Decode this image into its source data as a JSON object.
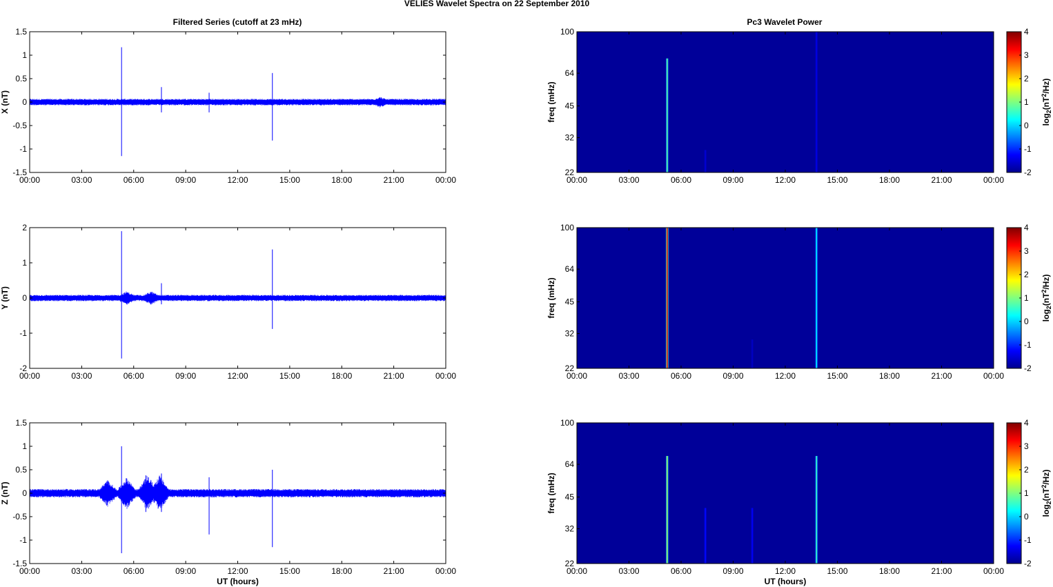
{
  "figure": {
    "title": "VELIES Wavelet Spectra on 22 September 2010",
    "left_title": "Filtered Series (cutoff at 23 mHz)",
    "right_title": "Pc3 Wavelet Power",
    "time_xlabel": "UT (hours)",
    "freq_ylabel": "freq (mHz)",
    "colorbar_label": "log2(nT2/Hz)",
    "colorbar_label_parts": {
      "base": "log",
      "sub": "2",
      "open": "(nT",
      "sup": "2",
      "close": "/Hz)"
    }
  },
  "chart_data": [
    {
      "type": "line",
      "name": "X",
      "ylabel": "X (nT)",
      "xlabel": "",
      "x_ticks": [
        "00:00",
        "03:00",
        "06:00",
        "09:00",
        "12:00",
        "15:00",
        "18:00",
        "21:00",
        "00:00"
      ],
      "xlim_hours": [
        0,
        24
      ],
      "ylim": [
        -1.5,
        1.5
      ],
      "y_ticks": [
        -1.5,
        -1,
        -0.5,
        0,
        0.5,
        1,
        1.5
      ],
      "color": "#0000ff",
      "noise_amplitude": 0.07,
      "bursts": [
        [
          20.2,
          0.08
        ]
      ],
      "spikes": [
        {
          "t": 5.3,
          "min": -1.15,
          "max": 1.17
        },
        {
          "t": 7.6,
          "min": -0.22,
          "max": 0.32
        },
        {
          "t": 10.35,
          "min": -0.22,
          "max": 0.2
        },
        {
          "t": 14.0,
          "min": -0.82,
          "max": 0.62
        }
      ]
    },
    {
      "type": "line",
      "name": "Y",
      "ylabel": "Y (nT)",
      "xlabel": "",
      "x_ticks": [
        "00:00",
        "03:00",
        "06:00",
        "09:00",
        "12:00",
        "15:00",
        "18:00",
        "21:00",
        "00:00"
      ],
      "xlim_hours": [
        0,
        24
      ],
      "ylim": [
        -2,
        2
      ],
      "y_ticks": [
        -2,
        -1,
        0,
        1,
        2
      ],
      "color": "#0000ff",
      "noise_amplitude": 0.09,
      "bursts": [
        [
          5.6,
          0.15
        ],
        [
          7.0,
          0.15
        ]
      ],
      "spikes": [
        {
          "t": 5.3,
          "min": -1.72,
          "max": 1.9
        },
        {
          "t": 7.6,
          "min": -0.18,
          "max": 0.42
        },
        {
          "t": 14.0,
          "min": -0.88,
          "max": 1.38
        }
      ]
    },
    {
      "type": "line",
      "name": "Z",
      "ylabel": "Z (nT)",
      "xlabel": "UT (hours)",
      "x_ticks": [
        "00:00",
        "03:00",
        "06:00",
        "09:00",
        "12:00",
        "15:00",
        "18:00",
        "21:00",
        "00:00"
      ],
      "xlim_hours": [
        0,
        24
      ],
      "ylim": [
        -1.5,
        1.5
      ],
      "y_ticks": [
        -1.5,
        -1,
        -0.5,
        0,
        0.5,
        1,
        1.5
      ],
      "color": "#0000ff",
      "noise_amplitude": 0.09,
      "bursts": [
        [
          4.5,
          0.25
        ],
        [
          5.6,
          0.3
        ],
        [
          6.8,
          0.35
        ],
        [
          7.5,
          0.35
        ]
      ],
      "spikes": [
        {
          "t": 5.3,
          "min": -1.28,
          "max": 1.0
        },
        {
          "t": 6.7,
          "min": -0.4,
          "max": 0.38
        },
        {
          "t": 7.6,
          "min": -0.4,
          "max": 0.42
        },
        {
          "t": 10.35,
          "min": -0.88,
          "max": 0.34
        },
        {
          "t": 14.0,
          "min": -1.15,
          "max": 0.5
        }
      ]
    },
    {
      "type": "heatmap",
      "component": "X",
      "xlabel": "",
      "ylabel": "freq (mHz)",
      "x_ticks": [
        "00:00",
        "03:00",
        "06:00",
        "09:00",
        "12:00",
        "15:00",
        "18:00",
        "21:00",
        "00:00"
      ],
      "xlim_hours": [
        0,
        24
      ],
      "y_ticks": [
        22,
        32,
        45,
        64,
        100
      ],
      "ylim": [
        22,
        100
      ],
      "y_scale": "log",
      "colorbar_ticks": [
        -2,
        -1,
        0,
        1,
        2,
        3,
        4
      ],
      "clim": [
        -2,
        4
      ],
      "background_value": -1.85,
      "features": [
        {
          "t": 5.2,
          "fmin": 22,
          "fmax": 75,
          "peak": 0.8
        },
        {
          "t": 7.4,
          "fmin": 22,
          "fmax": 28,
          "peak": -1.5
        },
        {
          "t": 13.8,
          "fmin": 22,
          "fmax": 100,
          "peak": -1.4
        }
      ]
    },
    {
      "type": "heatmap",
      "component": "Y",
      "xlabel": "",
      "ylabel": "freq (mHz)",
      "x_ticks": [
        "00:00",
        "03:00",
        "06:00",
        "09:00",
        "12:00",
        "15:00",
        "18:00",
        "21:00",
        "00:00"
      ],
      "xlim_hours": [
        0,
        24
      ],
      "y_ticks": [
        22,
        32,
        45,
        64,
        100
      ],
      "ylim": [
        22,
        100
      ],
      "y_scale": "log",
      "colorbar_ticks": [
        -2,
        -1,
        0,
        1,
        2,
        3,
        4
      ],
      "clim": [
        -2,
        4
      ],
      "background_value": -1.85,
      "features": [
        {
          "t": 5.2,
          "fmin": 22,
          "fmax": 100,
          "peak": 3.2
        },
        {
          "t": 13.8,
          "fmin": 22,
          "fmax": 100,
          "peak": 0.2
        },
        {
          "t": 10.1,
          "fmin": 22,
          "fmax": 30,
          "peak": -1.6
        }
      ]
    },
    {
      "type": "heatmap",
      "component": "Z",
      "xlabel": "UT (hours)",
      "ylabel": "freq (mHz)",
      "x_ticks": [
        "00:00",
        "03:00",
        "06:00",
        "09:00",
        "12:00",
        "15:00",
        "18:00",
        "21:00",
        "00:00"
      ],
      "xlim_hours": [
        0,
        24
      ],
      "y_ticks": [
        22,
        32,
        45,
        64,
        100
      ],
      "ylim": [
        22,
        100
      ],
      "y_scale": "log",
      "colorbar_ticks": [
        -2,
        -1,
        0,
        1,
        2,
        3,
        4
      ],
      "clim": [
        -2,
        4
      ],
      "background_value": -1.85,
      "features": [
        {
          "t": 5.2,
          "fmin": 22,
          "fmax": 70,
          "peak": 1.2
        },
        {
          "t": 7.4,
          "fmin": 22,
          "fmax": 40,
          "peak": -1.2
        },
        {
          "t": 10.1,
          "fmin": 22,
          "fmax": 40,
          "peak": -1.3
        },
        {
          "t": 13.8,
          "fmin": 22,
          "fmax": 70,
          "peak": 0.6
        }
      ]
    }
  ]
}
